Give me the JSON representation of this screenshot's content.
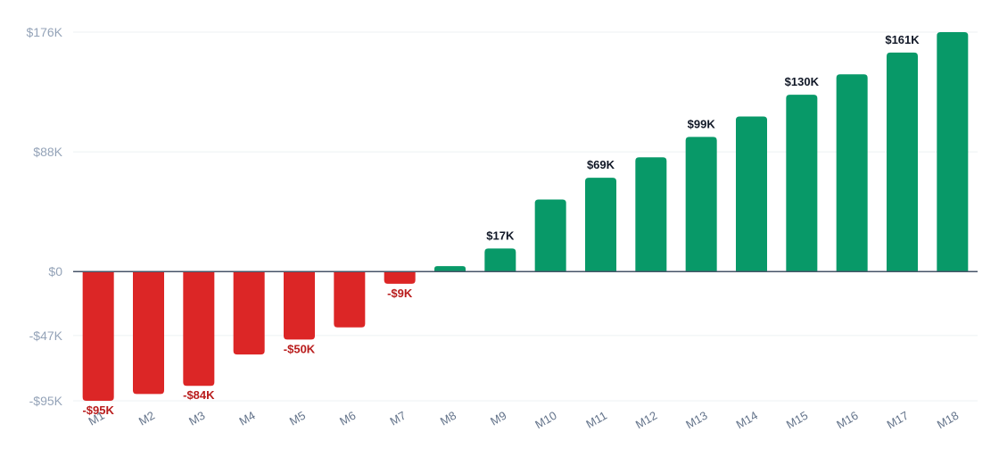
{
  "chart_data": {
    "type": "bar",
    "categories": [
      "M1",
      "M2",
      "M3",
      "M4",
      "M5",
      "M6",
      "M7",
      "M8",
      "M9",
      "M10",
      "M11",
      "M12",
      "M13",
      "M14",
      "M15",
      "M16",
      "M17",
      "M18"
    ],
    "values": [
      -95,
      -90,
      -84,
      -61,
      -50,
      -41,
      -9,
      4,
      17,
      53,
      69,
      84,
      99,
      114,
      130,
      145,
      161,
      176
    ],
    "data_labels": [
      {
        "index": 0,
        "text": "-$95K"
      },
      {
        "index": 2,
        "text": "-$84K"
      },
      {
        "index": 4,
        "text": "-$50K"
      },
      {
        "index": 6,
        "text": "-$9K"
      },
      {
        "index": 8,
        "text": "$17K"
      },
      {
        "index": 10,
        "text": "$69K"
      },
      {
        "index": 12,
        "text": "$99K"
      },
      {
        "index": 14,
        "text": "$130K"
      },
      {
        "index": 16,
        "text": "$161K"
      }
    ],
    "y_ticks": [
      {
        "value": 176,
        "label": "$176K"
      },
      {
        "value": 88,
        "label": "$88K"
      },
      {
        "value": 0,
        "label": "$0"
      },
      {
        "value": -47,
        "label": "-$47K"
      },
      {
        "value": -95,
        "label": "-$95K"
      }
    ],
    "units": "$K",
    "ylim": [
      -95,
      176
    ],
    "grid": true,
    "colors": {
      "positive": "#089968",
      "negative": "#dc2626",
      "positive_label": "#111827",
      "negative_label": "#b91c1c",
      "zero_line": "#475569",
      "grid": "#eef0f3"
    }
  }
}
